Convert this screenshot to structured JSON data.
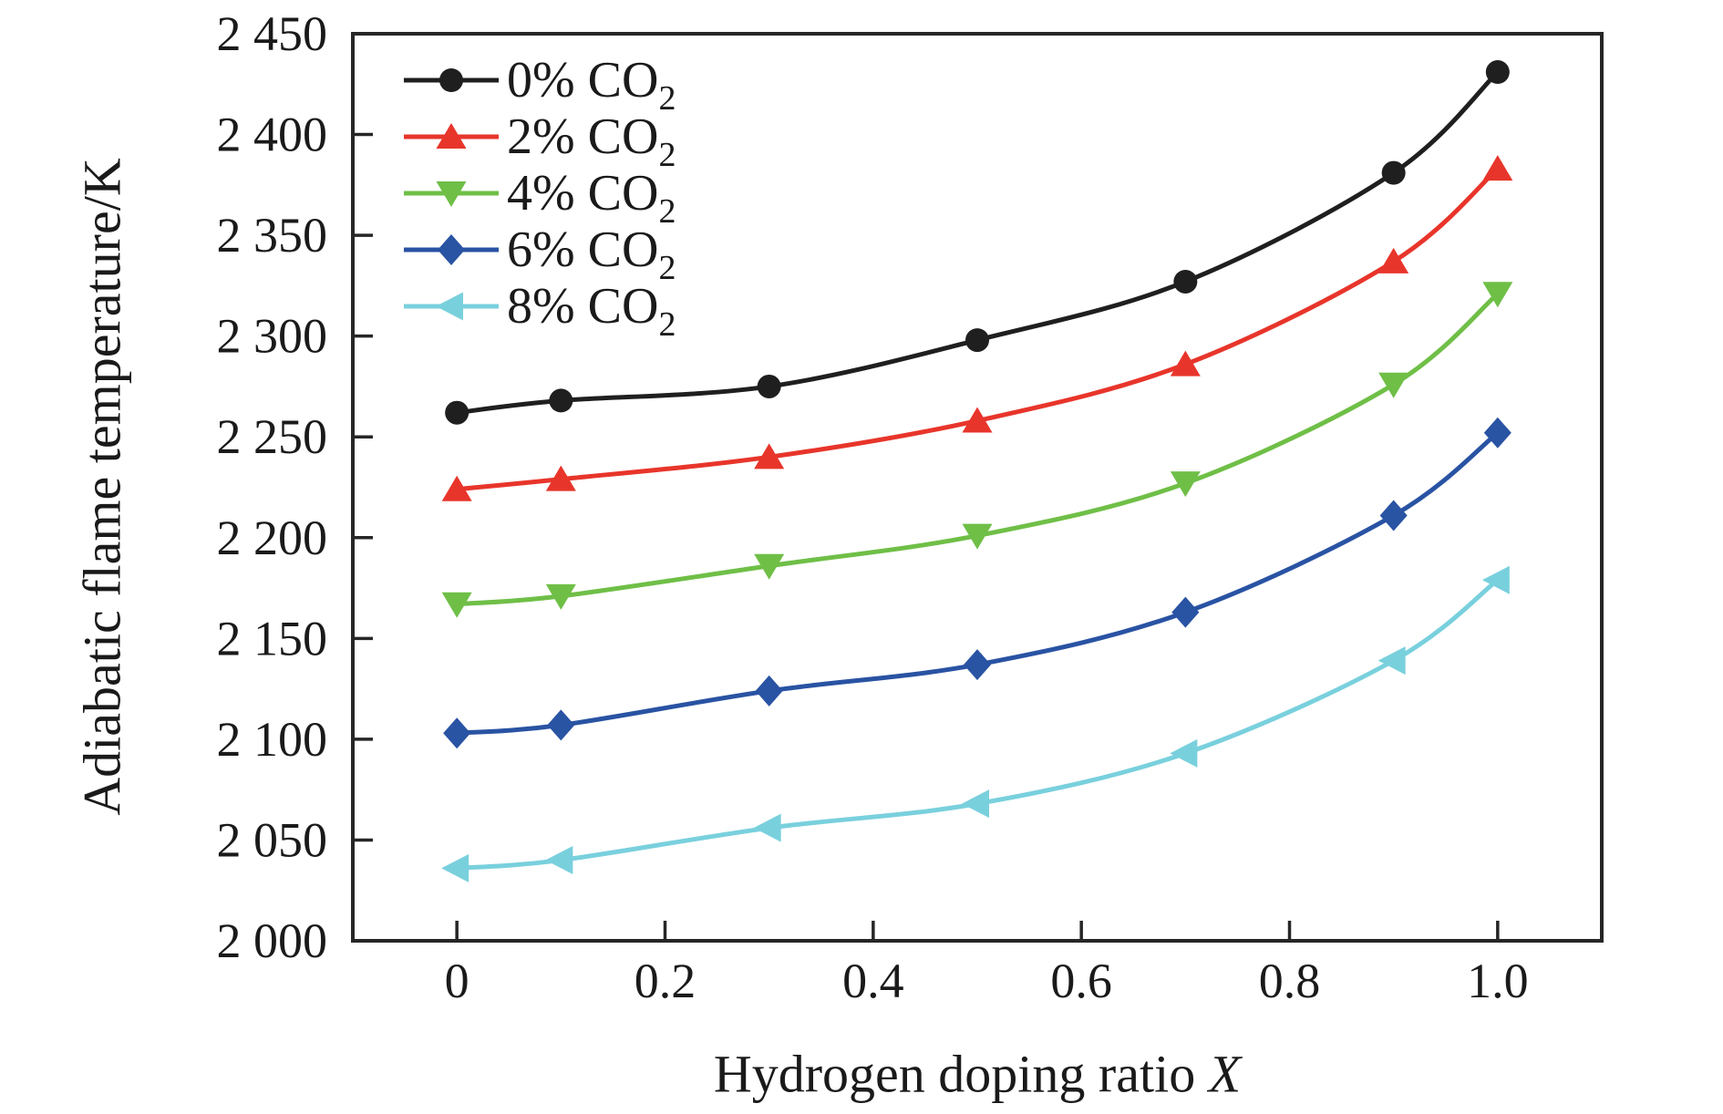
{
  "figure": {
    "background": "#ffffff",
    "frame_color": "#262626",
    "text_color": "#1a1a1a",
    "ylabel": "Adiabatic flame temperature/K",
    "xlabel_text": "Hydrogen doping ratio ",
    "xlabel_var": "X"
  },
  "chart_data": {
    "type": "line",
    "title": "",
    "xlabel": "Hydrogen doping ratio X",
    "ylabel": "Adiabatic flame temperature/K",
    "grid": false,
    "legend_position": "top-left-inside",
    "xlim": [
      -0.1,
      1.1
    ],
    "ylim": [
      2000,
      2450
    ],
    "x": [
      0,
      0.1,
      0.3,
      0.5,
      0.7,
      0.9,
      1.0
    ],
    "x_ticks": [
      0,
      0.2,
      0.4,
      0.6,
      0.8,
      1.0
    ],
    "x_tick_labels": [
      "0",
      "0.2",
      "0.4",
      "0.6",
      "0.8",
      "1.0"
    ],
    "y_ticks": [
      2000,
      2050,
      2100,
      2150,
      2200,
      2250,
      2300,
      2350,
      2400,
      2450
    ],
    "y_tick_labels": [
      "2 000",
      "2 050",
      "2 100",
      "2 150",
      "2 200",
      "2 250",
      "2 300",
      "2 350",
      "2 400",
      "2 450"
    ],
    "series": [
      {
        "name": "0% CO2",
        "label_prefix": "0% CO",
        "label_sub": "2",
        "color": "#1f1f1f",
        "marker": "circle",
        "values": [
          2262,
          2268,
          2275,
          2298,
          2327,
          2381,
          2431
        ]
      },
      {
        "name": "2% CO2",
        "label_prefix": "2% CO",
        "label_sub": "2",
        "color": "#e8352b",
        "marker": "triangle-up",
        "values": [
          2224,
          2229,
          2240,
          2258,
          2286,
          2337,
          2383
        ]
      },
      {
        "name": "4% CO2",
        "label_prefix": "4% CO",
        "label_sub": "2",
        "color": "#6fbf47",
        "marker": "triangle-down",
        "values": [
          2167,
          2171,
          2186,
          2201,
          2227,
          2276,
          2321
        ]
      },
      {
        "name": "6% CO2",
        "label_prefix": "6% CO",
        "label_sub": "2",
        "color": "#2953a3",
        "marker": "diamond",
        "values": [
          2103,
          2107,
          2124,
          2137,
          2163,
          2211,
          2252
        ]
      },
      {
        "name": "8% CO2",
        "label_prefix": "8% CO",
        "label_sub": "2",
        "color": "#79d0dd",
        "marker": "triangle-left",
        "values": [
          2036,
          2040,
          2056,
          2068,
          2093,
          2139,
          2179
        ]
      }
    ]
  }
}
